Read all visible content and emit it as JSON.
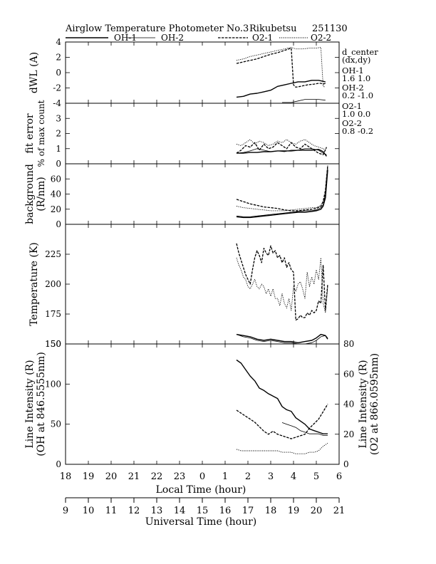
{
  "header": {
    "title": "Airglow Temperature Photometer No.3",
    "station": "Rikubetsu",
    "date": "251130"
  },
  "legend": [
    {
      "name": "OH-1",
      "dash": "solid",
      "width": 1.4
    },
    {
      "name": "OH-2",
      "dash": "solid",
      "width": 0.8
    },
    {
      "name": "O2-1",
      "dash": "dash",
      "width": 1.3
    },
    {
      "name": "O2-2",
      "dash": "dot",
      "width": 0.9
    }
  ],
  "side_notes": [
    "d_center",
    "(dx,dy)",
    "OH-1",
    "1.6  1.0",
    "OH-2",
    "0.2  -1.0",
    "O2-1",
    "1.0  0.0",
    "O2-2",
    "0.8  -0.2"
  ],
  "axes": {
    "local_time_label": "Local Time (hour)",
    "universal_time_label": "Universal Time (hour)",
    "local_ticks": [
      "18",
      "19",
      "20",
      "21",
      "22",
      "23",
      "0",
      "1",
      "2",
      "3",
      "4",
      "5",
      "6"
    ],
    "universal_ticks": [
      "9",
      "10",
      "11",
      "12",
      "13",
      "14",
      "15",
      "16",
      "17",
      "18",
      "19",
      "20",
      "21"
    ]
  },
  "chart_data": [
    {
      "type": "line",
      "ylabel": "dWL (A)",
      "ylim": [
        -4,
        4
      ],
      "yticks": [
        "-4",
        "-2",
        "0",
        "2",
        "4"
      ],
      "series": [
        {
          "name": "OH-1",
          "x": [
            1.5,
            1.8,
            2.1,
            2.4,
            2.7,
            3.0,
            3.3,
            3.6,
            3.9,
            4.2,
            4.5,
            4.8,
            5.1,
            5.4
          ],
          "y": [
            -3.2,
            -3.1,
            -2.8,
            -2.7,
            -2.5,
            -2.3,
            -1.8,
            -1.6,
            -1.4,
            -1.2,
            -1.2,
            -1.0,
            -1.0,
            -1.2
          ]
        },
        {
          "name": "OH-2",
          "x": [
            3.5,
            3.9,
            4.2,
            4.5,
            4.8,
            5.1,
            5.4
          ],
          "y": [
            -3.9,
            -3.9,
            -3.7,
            -3.5,
            -3.5,
            -3.5,
            -3.6
          ]
        },
        {
          "name": "O2-1",
          "x": [
            1.5,
            1.8,
            2.1,
            2.4,
            2.7,
            3.0,
            3.3,
            3.6,
            3.9,
            4.0,
            4.1,
            4.3,
            4.6,
            4.9,
            5.1,
            5.2,
            5.3,
            5.4
          ],
          "y": [
            1.2,
            1.4,
            1.6,
            1.8,
            2.1,
            2.4,
            2.6,
            2.9,
            3.2,
            -1.6,
            -1.9,
            -1.8,
            -1.6,
            -1.5,
            -1.4,
            -1.4,
            -1.5,
            -1.4
          ]
        },
        {
          "name": "O2-2",
          "x": [
            1.5,
            1.8,
            2.1,
            2.4,
            2.7,
            3.0,
            3.3,
            3.6,
            3.9,
            4.1,
            4.4,
            4.7,
            5.0,
            5.2,
            5.3,
            5.4
          ],
          "y": [
            1.6,
            1.8,
            2.1,
            2.3,
            2.5,
            2.7,
            2.9,
            3.1,
            3.3,
            3.1,
            3.1,
            3.2,
            3.2,
            3.3,
            -1.8,
            -1.9
          ]
        }
      ]
    },
    {
      "type": "line",
      "ylabel": "fit error",
      "ylabel2": "% of max count",
      "ylim": [
        0,
        4
      ],
      "yticks": [
        "0",
        "1",
        "2",
        "3"
      ],
      "series": [
        {
          "name": "OH-1",
          "x": [
            1.5,
            1.8,
            2.1,
            2.4,
            2.7,
            3.0,
            3.3,
            3.6,
            3.9,
            4.2,
            4.5,
            4.8,
            5.1,
            5.3,
            5.45
          ],
          "y": [
            0.7,
            0.7,
            0.75,
            0.75,
            0.8,
            0.8,
            0.85,
            0.85,
            0.85,
            0.9,
            0.9,
            0.9,
            0.95,
            0.8,
            0.5
          ]
        },
        {
          "name": "OH-2",
          "x": [
            1.5,
            1.8,
            2.1,
            2.4,
            2.7,
            3.0,
            3.3,
            3.6,
            3.9,
            4.2,
            4.5,
            4.8,
            5.1,
            5.3,
            5.45
          ],
          "y": [
            0.7,
            0.75,
            0.85,
            1.0,
            0.9,
            0.8,
            0.85,
            0.8,
            0.9,
            0.9,
            1.0,
            1.0,
            0.9,
            0.7,
            0.6
          ]
        },
        {
          "name": "O2-1",
          "x": [
            1.5,
            1.7,
            1.9,
            2.1,
            2.3,
            2.5,
            2.7,
            2.9,
            3.1,
            3.3,
            3.5,
            3.7,
            3.9,
            4.1,
            4.3,
            4.5,
            4.7,
            4.9,
            5.1,
            5.3,
            5.45
          ],
          "y": [
            0.7,
            0.9,
            1.2,
            1.1,
            1.4,
            0.9,
            1.3,
            1.0,
            1.1,
            1.4,
            1.2,
            1.0,
            1.4,
            1.1,
            1.0,
            1.3,
            1.1,
            0.9,
            0.7,
            0.6,
            1.1
          ]
        },
        {
          "name": "O2-2",
          "x": [
            1.5,
            1.7,
            1.9,
            2.1,
            2.3,
            2.5,
            2.7,
            2.9,
            3.1,
            3.3,
            3.5,
            3.7,
            3.9,
            4.1,
            4.3,
            4.5,
            4.7,
            4.9,
            5.1,
            5.3,
            5.45
          ],
          "y": [
            1.3,
            1.2,
            1.4,
            1.6,
            1.3,
            1.5,
            1.4,
            1.2,
            1.3,
            1.5,
            1.4,
            1.6,
            1.4,
            1.3,
            1.5,
            1.6,
            1.4,
            1.2,
            1.1,
            1.0,
            0.9
          ]
        }
      ]
    },
    {
      "type": "line",
      "ylabel": "background",
      "ylabel2": "(R/nm)",
      "ylim": [
        0,
        80
      ],
      "yticks": [
        "0",
        "20",
        "40",
        "60"
      ],
      "series": [
        {
          "name": "OH-1",
          "x": [
            1.5,
            1.8,
            2.1,
            2.4,
            2.7,
            3.0,
            3.3,
            3.6,
            3.9,
            4.2,
            4.5,
            4.8,
            5.0,
            5.2,
            5.3,
            5.4,
            5.5
          ],
          "y": [
            10,
            9,
            9,
            10,
            11,
            12,
            13,
            14,
            15,
            16,
            16,
            17,
            18,
            20,
            24,
            35,
            72
          ]
        },
        {
          "name": "OH-2",
          "x": [
            1.5,
            1.8,
            2.1,
            2.4,
            2.7,
            3.0,
            3.3,
            3.6,
            3.9,
            4.2,
            4.5,
            4.8,
            5.0,
            5.2,
            5.3,
            5.4,
            5.5
          ],
          "y": [
            11,
            10,
            10,
            11,
            12,
            13,
            14,
            15,
            16,
            17,
            18,
            18,
            19,
            22,
            26,
            40,
            74
          ]
        },
        {
          "name": "O2-1",
          "x": [
            1.5,
            1.8,
            2.1,
            2.4,
            2.7,
            3.0,
            3.3,
            3.6,
            3.9,
            4.2,
            4.5,
            4.8,
            5.0,
            5.2,
            5.3,
            5.4,
            5.5
          ],
          "y": [
            33,
            30,
            27,
            25,
            23,
            22,
            21,
            19,
            18,
            18,
            19,
            20,
            21,
            24,
            30,
            45,
            78
          ]
        },
        {
          "name": "O2-2",
          "x": [
            1.5,
            1.8,
            2.1,
            2.4,
            2.7,
            3.0,
            3.3,
            3.6,
            3.9,
            4.2,
            4.5,
            4.8,
            5.0,
            5.2,
            5.3,
            5.4,
            5.5
          ],
          "y": [
            24,
            22,
            21,
            20,
            19,
            18,
            18,
            18,
            19,
            20,
            21,
            22,
            22,
            25,
            31,
            46,
            78
          ]
        }
      ]
    },
    {
      "type": "line",
      "ylabel": "Temperature (K)",
      "ylim": [
        150,
        250
      ],
      "yticks": [
        "150",
        "175",
        "200",
        "225"
      ],
      "series": [
        {
          "name": "OH-1",
          "x": [
            1.5,
            1.8,
            2.1,
            2.4,
            2.7,
            3.0,
            3.3,
            3.6,
            3.9,
            4.2,
            4.5,
            4.8,
            5.0,
            5.2,
            5.4,
            5.5
          ],
          "y": [
            158,
            157,
            156,
            154,
            153,
            154,
            153,
            152,
            152,
            151,
            152,
            153,
            155,
            158,
            157,
            154
          ]
        },
        {
          "name": "OH-2",
          "x": [
            1.5,
            1.8,
            2.1,
            2.4,
            2.7,
            3.0,
            3.3,
            3.6,
            3.9,
            4.2,
            4.5,
            4.8,
            5.0,
            5.2,
            5.4,
            5.5
          ],
          "y": [
            158,
            156,
            155,
            153,
            152,
            153,
            152,
            151,
            151,
            150,
            150,
            151,
            153,
            156,
            157,
            155
          ]
        },
        {
          "name": "O2-1",
          "x": [
            1.5,
            1.6,
            1.7,
            1.8,
            1.9,
            2.0,
            2.1,
            2.2,
            2.3,
            2.4,
            2.5,
            2.6,
            2.7,
            2.8,
            2.9,
            3.0,
            3.1,
            3.2,
            3.3,
            3.4,
            3.5,
            3.6,
            3.7,
            3.8,
            3.9,
            4.0,
            4.1,
            4.2,
            4.3,
            4.4,
            4.5,
            4.6,
            4.7,
            4.8,
            4.9,
            5.0,
            5.1,
            5.2,
            5.3,
            5.4,
            5.5
          ],
          "y": [
            234,
            226,
            220,
            214,
            208,
            204,
            200,
            212,
            222,
            228,
            224,
            218,
            230,
            226,
            224,
            232,
            226,
            228,
            222,
            224,
            218,
            222,
            214,
            218,
            212,
            210,
            170,
            171,
            174,
            172,
            172,
            176,
            174,
            178,
            176,
            178,
            186,
            184,
            216,
            178,
            200
          ]
        },
        {
          "name": "O2-2",
          "x": [
            1.5,
            1.6,
            1.7,
            1.8,
            1.9,
            2.0,
            2.1,
            2.2,
            2.3,
            2.4,
            2.5,
            2.6,
            2.7,
            2.8,
            2.9,
            3.0,
            3.1,
            3.2,
            3.3,
            3.4,
            3.5,
            3.6,
            3.7,
            3.8,
            3.9,
            4.0,
            4.1,
            4.2,
            4.3,
            4.4,
            4.5,
            4.6,
            4.7,
            4.8,
            4.9,
            5.0,
            5.1,
            5.2,
            5.3,
            5.4,
            5.5
          ],
          "y": [
            222,
            216,
            212,
            206,
            204,
            198,
            196,
            200,
            204,
            198,
            196,
            200,
            198,
            192,
            196,
            190,
            196,
            188,
            188,
            182,
            192,
            184,
            180,
            188,
            178,
            198,
            194,
            200,
            202,
            196,
            188,
            210,
            198,
            206,
            200,
            212,
            204,
            222,
            184,
            176,
            198
          ]
        }
      ]
    },
    {
      "type": "line",
      "ylabel": "Line Intensity (R)",
      "ylabel2": "(OH at 846.5555nm)",
      "ylabel_right": "Line Intensity (R)",
      "ylabel_right2": "(O2 at 866.0595nm)",
      "ylim": [
        0,
        150
      ],
      "ylim_right": [
        0,
        80
      ],
      "yticks": [
        "0",
        "50",
        "100",
        "150"
      ],
      "yticks_right": [
        "0",
        "20",
        "40",
        "60",
        "80"
      ],
      "series": [
        {
          "name": "OH-1",
          "axis": "left",
          "x": [
            1.5,
            1.7,
            1.9,
            2.1,
            2.3,
            2.5,
            2.7,
            2.9,
            3.1,
            3.3,
            3.5,
            3.7,
            3.9,
            4.1,
            4.3,
            4.5,
            4.7,
            4.9,
            5.1,
            5.3,
            5.5
          ],
          "y": [
            130,
            126,
            118,
            110,
            104,
            95,
            92,
            88,
            85,
            82,
            72,
            68,
            66,
            58,
            54,
            50,
            44,
            42,
            40,
            38,
            38
          ]
        },
        {
          "name": "OH-2",
          "axis": "left",
          "x": [
            3.5,
            3.7,
            3.9,
            4.1,
            4.3,
            4.5,
            4.7,
            4.9,
            5.1,
            5.3,
            5.5
          ],
          "y": [
            52,
            50,
            48,
            46,
            42,
            40,
            38,
            38,
            38,
            36,
            36
          ]
        },
        {
          "name": "O2-1",
          "axis": "right",
          "x": [
            1.5,
            1.7,
            1.9,
            2.1,
            2.3,
            2.5,
            2.7,
            2.9,
            3.1,
            3.3,
            3.5,
            3.7,
            3.9,
            4.1,
            4.3,
            4.5,
            4.7,
            4.9,
            5.1,
            5.3,
            5.5
          ],
          "y": [
            36,
            34,
            32,
            30,
            28,
            25,
            22,
            20,
            22,
            20,
            19,
            18,
            17,
            18,
            19,
            20,
            24,
            27,
            30,
            35,
            40
          ]
        },
        {
          "name": "O2-2",
          "axis": "right",
          "x": [
            1.5,
            1.7,
            1.9,
            2.1,
            2.3,
            2.5,
            2.7,
            2.9,
            3.1,
            3.3,
            3.5,
            3.7,
            3.9,
            4.1,
            4.3,
            4.5,
            4.7,
            4.9,
            5.1,
            5.3,
            5.5
          ],
          "y": [
            10,
            9,
            9,
            9,
            9,
            9,
            9,
            9,
            9,
            9,
            8,
            8,
            8,
            7,
            7,
            7,
            8,
            8,
            9,
            12,
            14
          ]
        }
      ]
    }
  ]
}
